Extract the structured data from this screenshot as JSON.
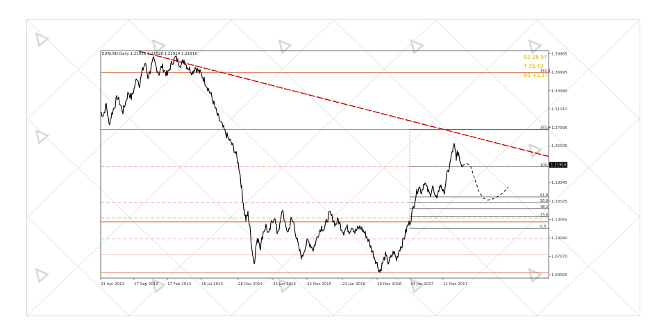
{
  "chart_data": {
    "type": "line",
    "symbol_header": "EURUSD,Daily  1.21919 1.21928 1.21914 1.21916",
    "current_price": "1.21916",
    "y_tick_labels": [
      "1.39965",
      "1.36995",
      "1.33980",
      "1.31010",
      "1.27995",
      "1.25025",
      "1.21916",
      "1.19040",
      "1.16025",
      "1.13055",
      "1.10040",
      "1.07070",
      "1.04055"
    ],
    "x_tick_labels": [
      "21 Apr 2013",
      "17 Sep 2013",
      "17 Feb 2014",
      "16 Jul 2014",
      "26 Dec 2014",
      "25 Jun 2015",
      "22 Dec 2015",
      "21 Jun 2016",
      "16 Dec 2016",
      "14 Jun 2017",
      "11 Dec 2017"
    ],
    "fib_level_labels": [
      "161.8",
      "161.8",
      "100.0",
      "61.8",
      "50.0",
      "38.2",
      "23.6",
      "0.0"
    ],
    "info_lines": [
      "R2  28.97",
      "T  35.43",
      "R0  +1.17"
    ],
    "series_color": "#000000",
    "trendline_color": "#cc0000",
    "level_line_color": "#e08a6a",
    "y_range": [
      1.035,
      1.405
    ],
    "price_path": [
      [
        0,
        1.305
      ],
      [
        4,
        1.3
      ],
      [
        8,
        1.318
      ],
      [
        12,
        1.285
      ],
      [
        16,
        1.302
      ],
      [
        20,
        1.315
      ],
      [
        24,
        1.33
      ],
      [
        28,
        1.318
      ],
      [
        32,
        1.306
      ],
      [
        36,
        1.322
      ],
      [
        40,
        1.338
      ],
      [
        44,
        1.328
      ],
      [
        48,
        1.342
      ],
      [
        52,
        1.362
      ],
      [
        56,
        1.35
      ],
      [
        60,
        1.372
      ],
      [
        64,
        1.385
      ],
      [
        68,
        1.362
      ],
      [
        72,
        1.375
      ],
      [
        76,
        1.39
      ],
      [
        80,
        1.378
      ],
      [
        84,
        1.368
      ],
      [
        88,
        1.38
      ],
      [
        92,
        1.372
      ],
      [
        96,
        1.365
      ],
      [
        100,
        1.378
      ],
      [
        104,
        1.388
      ],
      [
        108,
        1.394
      ],
      [
        112,
        1.386
      ],
      [
        116,
        1.382
      ],
      [
        120,
        1.39
      ],
      [
        124,
        1.38
      ],
      [
        128,
        1.375
      ],
      [
        132,
        1.37
      ],
      [
        136,
        1.378
      ],
      [
        140,
        1.372
      ],
      [
        144,
        1.368
      ],
      [
        148,
        1.36
      ],
      [
        152,
        1.35
      ],
      [
        156,
        1.34
      ],
      [
        160,
        1.33
      ],
      [
        164,
        1.315
      ],
      [
        168,
        1.3
      ],
      [
        172,
        1.29
      ],
      [
        176,
        1.28
      ],
      [
        180,
        1.27
      ],
      [
        184,
        1.262
      ],
      [
        188,
        1.255
      ],
      [
        192,
        1.245
      ],
      [
        196,
        1.232
      ],
      [
        200,
        1.21
      ],
      [
        203,
        1.18
      ],
      [
        206,
        1.15
      ],
      [
        209,
        1.13
      ],
      [
        212,
        1.14
      ],
      [
        215,
        1.115
      ],
      [
        218,
        1.08
      ],
      [
        221,
        1.06
      ],
      [
        224,
        1.09
      ],
      [
        227,
        1.1
      ],
      [
        230,
        1.085
      ],
      [
        234,
        1.11
      ],
      [
        238,
        1.12
      ],
      [
        242,
        1.105
      ],
      [
        246,
        1.125
      ],
      [
        250,
        1.135
      ],
      [
        254,
        1.11
      ],
      [
        258,
        1.12
      ],
      [
        262,
        1.148
      ],
      [
        266,
        1.118
      ],
      [
        270,
        1.11
      ],
      [
        274,
        1.13
      ],
      [
        278,
        1.125
      ],
      [
        282,
        1.1
      ],
      [
        286,
        1.08
      ],
      [
        290,
        1.068
      ],
      [
        294,
        1.085
      ],
      [
        298,
        1.095
      ],
      [
        302,
        1.09
      ],
      [
        306,
        1.082
      ],
      [
        310,
        1.095
      ],
      [
        314,
        1.11
      ],
      [
        318,
        1.118
      ],
      [
        322,
        1.115
      ],
      [
        326,
        1.13
      ],
      [
        330,
        1.14
      ],
      [
        334,
        1.132
      ],
      [
        338,
        1.122
      ],
      [
        342,
        1.13
      ],
      [
        346,
        1.118
      ],
      [
        350,
        1.11
      ],
      [
        354,
        1.118
      ],
      [
        358,
        1.112
      ],
      [
        362,
        1.12
      ],
      [
        366,
        1.11
      ],
      [
        370,
        1.115
      ],
      [
        374,
        1.118
      ],
      [
        378,
        1.112
      ],
      [
        382,
        1.105
      ],
      [
        386,
        1.095
      ],
      [
        390,
        1.082
      ],
      [
        394,
        1.07
      ],
      [
        398,
        1.058
      ],
      [
        402,
        1.045
      ],
      [
        406,
        1.06
      ],
      [
        410,
        1.072
      ],
      [
        414,
        1.06
      ],
      [
        418,
        1.068
      ],
      [
        422,
        1.078
      ],
      [
        426,
        1.065
      ],
      [
        430,
        1.082
      ],
      [
        434,
        1.09
      ],
      [
        438,
        1.105
      ],
      [
        442,
        1.12
      ],
      [
        446,
        1.128
      ],
      [
        450,
        1.15
      ],
      [
        454,
        1.17
      ],
      [
        458,
        1.185
      ],
      [
        462,
        1.175
      ],
      [
        466,
        1.192
      ],
      [
        470,
        1.18
      ],
      [
        474,
        1.17
      ],
      [
        478,
        1.185
      ],
      [
        482,
        1.162
      ],
      [
        486,
        1.175
      ],
      [
        490,
        1.188
      ],
      [
        494,
        1.17
      ],
      [
        498,
        1.2
      ],
      [
        502,
        1.215
      ],
      [
        506,
        1.24
      ],
      [
        509,
        1.25
      ],
      [
        512,
        1.232
      ],
      [
        515,
        1.24
      ],
      [
        518,
        1.225
      ],
      [
        521,
        1.218
      ]
    ],
    "projection_path": [
      [
        521,
        1.218
      ],
      [
        527,
        1.222
      ],
      [
        533,
        1.216
      ],
      [
        539,
        1.195
      ],
      [
        545,
        1.175
      ],
      [
        551,
        1.165
      ],
      [
        557,
        1.162
      ],
      [
        563,
        1.163
      ],
      [
        569,
        1.166
      ],
      [
        575,
        1.17
      ],
      [
        581,
        1.176
      ],
      [
        587,
        1.183
      ]
    ],
    "trendline": [
      [
        55,
        1.404
      ],
      [
        645,
        1.233
      ]
    ],
    "solid_levels": [
      1.3692,
      1.277,
      1.1265,
      1.044
    ],
    "dashed_levels": [
      1.216,
      1.158,
      1.133,
      1.099
    ],
    "plain_levels": [
      1.074
    ],
    "fib_lines": [
      {
        "value": 1.277,
        "label_index": 0
      },
      {
        "value": 1.216,
        "label_index": 2
      },
      {
        "value": 1.167,
        "label_index": 3
      },
      {
        "value": 1.158,
        "label_index": 4
      },
      {
        "value": 1.148,
        "label_index": 5
      },
      {
        "value": 1.135,
        "label_index": 6
      },
      {
        "value": 1.116,
        "label_index": 7
      }
    ],
    "first_level_label_index": 1
  }
}
